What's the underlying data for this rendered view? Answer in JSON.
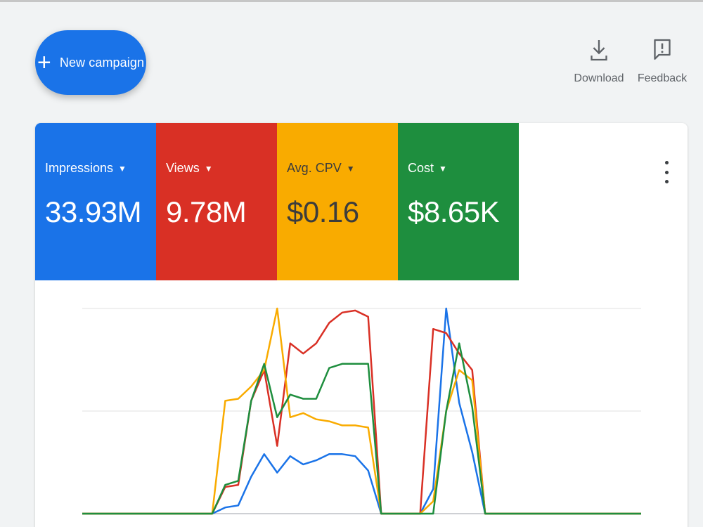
{
  "toolbar": {
    "new_campaign_label": "New campaign",
    "download_label": "Download",
    "feedback_label": "Feedback"
  },
  "metrics": [
    {
      "label": "Impressions",
      "value": "33.93M",
      "color": "#1a73e8"
    },
    {
      "label": "Views",
      "value": "9.78M",
      "color": "#d93025"
    },
    {
      "label": "Avg. CPV",
      "value": "$0.16",
      "color": "#f9ab00"
    },
    {
      "label": "Cost",
      "value": "$8.65K",
      "color": "#1e8e3e"
    }
  ],
  "icons": {
    "add": "plus-icon",
    "download": "download-icon",
    "feedback": "feedback-icon",
    "more": "more-vert-icon",
    "dropdown": "caret-down-icon"
  },
  "chart_data": {
    "type": "line",
    "grid": true,
    "ylim": [
      0,
      1
    ],
    "series": [
      {
        "color": "#1a73e8",
        "values": [
          0,
          0,
          0,
          0,
          0,
          0,
          0,
          0,
          0,
          0,
          0.0,
          0.03,
          0.04,
          0.18,
          0.29,
          0.2,
          0.28,
          0.24,
          0.26,
          0.29,
          0.29,
          0.28,
          0.21,
          0.0,
          0,
          0,
          0,
          0.12,
          1.0,
          0.54,
          0.3,
          0.0,
          0,
          0,
          0,
          0,
          0,
          0,
          0,
          0,
          0,
          0,
          0,
          0
        ]
      },
      {
        "color": "#d93025",
        "values": [
          0,
          0,
          0,
          0,
          0,
          0,
          0,
          0,
          0,
          0,
          0.0,
          0.13,
          0.14,
          0.55,
          0.7,
          0.33,
          0.83,
          0.78,
          0.83,
          0.93,
          0.98,
          0.99,
          0.96,
          0.0,
          0,
          0,
          0,
          0.9,
          0.88,
          0.78,
          0.7,
          0.0,
          0,
          0,
          0,
          0,
          0,
          0,
          0,
          0,
          0,
          0,
          0,
          0
        ]
      },
      {
        "color": "#f9ab00",
        "values": [
          0,
          0,
          0,
          0,
          0,
          0,
          0,
          0,
          0,
          0,
          0.0,
          0.55,
          0.56,
          0.62,
          0.7,
          1.0,
          0.47,
          0.49,
          0.46,
          0.45,
          0.43,
          0.43,
          0.42,
          0.0,
          0,
          0,
          0,
          0.06,
          0.5,
          0.7,
          0.65,
          0.0,
          0,
          0,
          0,
          0,
          0,
          0,
          0,
          0,
          0,
          0,
          0,
          0
        ]
      },
      {
        "color": "#1e8e3e",
        "values": [
          0,
          0,
          0,
          0,
          0,
          0,
          0,
          0,
          0,
          0,
          0.0,
          0.14,
          0.16,
          0.55,
          0.73,
          0.47,
          0.58,
          0.56,
          0.56,
          0.71,
          0.73,
          0.73,
          0.73,
          0.0,
          0,
          0,
          0,
          0.0,
          0.5,
          0.83,
          0.52,
          0.0,
          0,
          0,
          0,
          0,
          0,
          0,
          0,
          0,
          0,
          0,
          0,
          0
        ]
      }
    ]
  }
}
